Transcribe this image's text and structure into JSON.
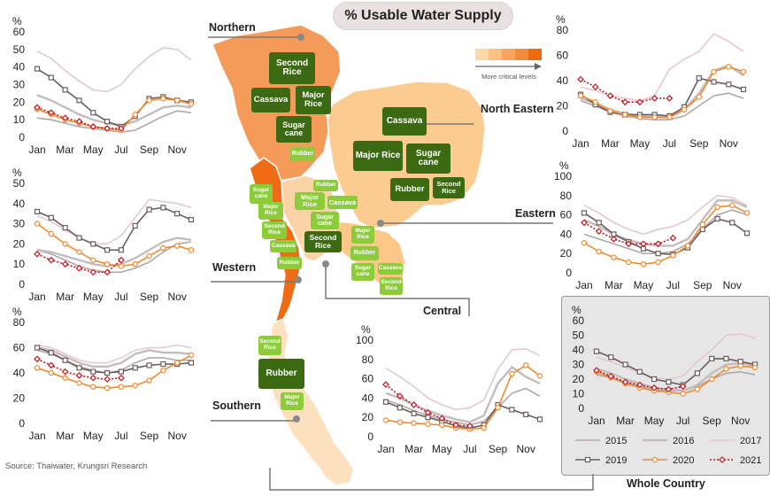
{
  "title": "% Usable Water Supply",
  "source": "Source: Thaiwater, Krungsri Research",
  "map_legend": {
    "label": "More critical levels",
    "colors": [
      "#fcd9a8",
      "#fbc183",
      "#f9a55e",
      "#f58a3a",
      "#f06a0f"
    ]
  },
  "regions": {
    "northern": "Northern",
    "north_eastern": "North Eastern",
    "eastern": "Eastern",
    "western": "Western",
    "central": "Central",
    "southern": "Southern",
    "whole": "Whole Country"
  },
  "colors": {
    "map_north": "#f49b5a",
    "map_northeast": "#fccb90",
    "map_west": "#f06c14",
    "map_central": "#fbd3a6",
    "map_east": "#fcc787",
    "map_south": "#fde0bd",
    "crop_dark": "#3c6a12",
    "crop_light": "#8ccc3a",
    "y2015": "#b3a6a6",
    "y2016": "#c4bcbc",
    "y2017": "#e4c8cc",
    "y2019": "#6b5d5d",
    "y2020": "#f08a2e",
    "y2021": "#c4171e"
  },
  "crops": {
    "north_second_rice": "Second Rice",
    "north_cassava": "Cassava",
    "north_major_rice": "Major Rice",
    "north_sugar_cane": "Sugar cane",
    "north_rubber": "Rubber",
    "ne_cassava": "Cassava",
    "ne_major_rice": "Major Rice",
    "ne_sugar_cane": "Sugar cane",
    "ne_rubber": "Rubber",
    "ne_second_rice": "Second Rice",
    "w_sugar_cane": "Sugar cane",
    "w_major_rice": "Major Rice",
    "w_second_rice": "Second Rice",
    "w_cassava": "Cassava",
    "w_rubber": "Rubber",
    "c_rubber": "Rubber",
    "c_major_rice": "Major Rice",
    "c_cassava": "Cassava",
    "c_sugar_cane": "Sugar cane",
    "c_second_rice": "Second Rice",
    "e_major_rice": "Major Rice",
    "e_rubber": "Rubber",
    "e_sugar_cane": "Sugar cane",
    "e_cassava": "Cassava",
    "e_second_rice": "Second Rice",
    "s_second_rice": "Second Rice",
    "s_rubber": "Rubber",
    "s_major_rice": "Major Rice"
  },
  "legend": [
    "2015",
    "2016",
    "2017",
    "2019",
    "2020",
    "2021"
  ],
  "chart_data": [
    {
      "id": "northern",
      "type": "line",
      "unit": "%",
      "ylim": [
        0,
        60
      ],
      "yticks": [
        0,
        10,
        20,
        30,
        40,
        50,
        60
      ],
      "x_ticks": [
        "Jan",
        "Mar",
        "May",
        "Jul",
        "Sep",
        "Nov"
      ],
      "series": [
        {
          "name": "2015",
          "values": [
            11,
            10,
            8,
            6,
            5,
            4,
            3,
            4,
            8,
            12,
            15,
            14
          ]
        },
        {
          "name": "2016",
          "values": [
            24,
            21,
            17,
            13,
            10,
            8,
            7,
            9,
            13,
            17,
            18,
            17
          ]
        },
        {
          "name": "2017",
          "values": [
            49,
            45,
            38,
            32,
            27,
            26,
            30,
            39,
            46,
            51,
            50,
            44
          ]
        },
        {
          "name": "2019",
          "values": [
            39,
            34,
            27,
            21,
            14,
            9,
            6,
            12,
            22,
            23,
            21,
            20
          ]
        },
        {
          "name": "2020",
          "values": [
            16,
            13,
            10,
            8,
            6,
            5,
            4,
            13,
            21,
            22,
            21,
            19
          ]
        },
        {
          "name": "2021",
          "values": [
            17,
            14,
            11,
            9,
            6,
            5,
            5
          ]
        }
      ]
    },
    {
      "id": "north_eastern",
      "type": "line",
      "unit": "%",
      "ylim": [
        0,
        80
      ],
      "yticks": [
        0,
        20,
        40,
        60,
        80
      ],
      "x_ticks": [
        "Jan",
        "Mar",
        "May",
        "Jul",
        "Sep",
        "Nov"
      ],
      "series": [
        {
          "name": "2015",
          "values": [
            24,
            20,
            15,
            12,
            10,
            9,
            9,
            12,
            20,
            28,
            30,
            26
          ]
        },
        {
          "name": "2016",
          "values": [
            26,
            22,
            17,
            14,
            12,
            11,
            11,
            17,
            30,
            48,
            52,
            44
          ]
        },
        {
          "name": "2017",
          "values": [
            35,
            32,
            28,
            26,
            24,
            28,
            49,
            57,
            63,
            77,
            71,
            63
          ]
        },
        {
          "name": "2019",
          "values": [
            29,
            21,
            15,
            13,
            13,
            13,
            12,
            19,
            42,
            39,
            37,
            33
          ]
        },
        {
          "name": "2020",
          "values": [
            28,
            23,
            16,
            13,
            11,
            11,
            11,
            17,
            27,
            47,
            51,
            47
          ]
        },
        {
          "name": "2021",
          "values": [
            41,
            35,
            28,
            23,
            23,
            26,
            26
          ]
        }
      ]
    },
    {
      "id": "western",
      "type": "line",
      "unit": "%",
      "ylim": [
        0,
        50
      ],
      "yticks": [
        0,
        10,
        20,
        30,
        40,
        50
      ],
      "x_ticks": [
        "Jan",
        "Mar",
        "May",
        "Jul",
        "Sep",
        "Nov"
      ],
      "series": [
        {
          "name": "2015",
          "values": [
            17,
            15,
            12,
            9,
            7,
            6,
            6,
            8,
            11,
            16,
            20,
            21
          ]
        },
        {
          "name": "2016",
          "values": [
            17,
            16,
            14,
            12,
            10,
            9,
            10,
            13,
            17,
            21,
            23,
            22
          ]
        },
        {
          "name": "2017",
          "values": [
            34,
            31,
            27,
            23,
            20,
            20,
            24,
            33,
            42,
            41,
            40,
            38
          ]
        },
        {
          "name": "2019",
          "values": [
            36,
            33,
            28,
            23,
            20,
            17,
            17,
            29,
            37,
            38,
            35,
            32
          ]
        },
        {
          "name": "2020",
          "values": [
            30,
            25,
            20,
            16,
            12,
            10,
            9,
            10,
            14,
            18,
            19,
            17
          ]
        },
        {
          "name": "2021",
          "values": [
            15,
            12,
            10,
            8,
            6,
            6,
            12
          ]
        }
      ]
    },
    {
      "id": "eastern",
      "type": "line",
      "unit": "%",
      "ylim": [
        0,
        100
      ],
      "yticks": [
        0,
        20,
        40,
        60,
        80,
        100
      ],
      "x_ticks": [
        "Jan",
        "Mar",
        "May",
        "Jul",
        "Sep",
        "Nov"
      ],
      "series": [
        {
          "name": "2015",
          "values": [
            40,
            35,
            30,
            25,
            20,
            20,
            22,
            30,
            45,
            60,
            65,
            60
          ]
        },
        {
          "name": "2016",
          "values": [
            55,
            48,
            40,
            34,
            30,
            28,
            28,
            35,
            55,
            75,
            75,
            68
          ]
        },
        {
          "name": "2017",
          "values": [
            70,
            62,
            52,
            45,
            40,
            45,
            48,
            55,
            68,
            80,
            78,
            70
          ]
        },
        {
          "name": "2019",
          "values": [
            62,
            52,
            40,
            32,
            25,
            20,
            19,
            26,
            45,
            56,
            52,
            41
          ]
        },
        {
          "name": "2020",
          "values": [
            31,
            22,
            16,
            11,
            9,
            11,
            18,
            28,
            50,
            68,
            70,
            62
          ]
        },
        {
          "name": "2021",
          "values": [
            52,
            43,
            35,
            30,
            30,
            30,
            36
          ]
        }
      ]
    },
    {
      "id": "southern",
      "type": "line",
      "unit": "%",
      "ylim": [
        0,
        80
      ],
      "yticks": [
        0,
        20,
        40,
        60,
        80
      ],
      "x_ticks": [
        "Jan",
        "Mar",
        "May",
        "Jul",
        "Sep",
        "Nov"
      ],
      "series": [
        {
          "name": "2015",
          "values": [
            58,
            55,
            50,
            45,
            42,
            40,
            42,
            48,
            52,
            52,
            50,
            50
          ]
        },
        {
          "name": "2016",
          "values": [
            60,
            58,
            53,
            48,
            45,
            45,
            48,
            55,
            58,
            56,
            56,
            55
          ]
        },
        {
          "name": "2017",
          "values": [
            62,
            60,
            55,
            50,
            48,
            48,
            52,
            58,
            60,
            60,
            62,
            60
          ]
        },
        {
          "name": "2019",
          "values": [
            60,
            56,
            50,
            44,
            41,
            40,
            41,
            44,
            46,
            47,
            47,
            48
          ]
        },
        {
          "name": "2020",
          "values": [
            44,
            40,
            36,
            32,
            29,
            28,
            29,
            30,
            34,
            42,
            48,
            54
          ]
        },
        {
          "name": "2021",
          "values": [
            51,
            46,
            41,
            38,
            36,
            35,
            36
          ]
        }
      ]
    },
    {
      "id": "central",
      "type": "line",
      "unit": "%",
      "ylim": [
        0,
        100
      ],
      "yticks": [
        0,
        20,
        40,
        60,
        80,
        100
      ],
      "x_ticks": [
        "Jan",
        "Mar",
        "May",
        "Jul",
        "Sep",
        "Nov"
      ],
      "series": [
        {
          "name": "2015",
          "values": [
            38,
            33,
            27,
            22,
            18,
            15,
            12,
            16,
            30,
            45,
            50,
            42
          ]
        },
        {
          "name": "2016",
          "values": [
            45,
            40,
            33,
            27,
            22,
            18,
            15,
            22,
            55,
            72,
            62,
            55
          ]
        },
        {
          "name": "2017",
          "values": [
            71,
            62,
            52,
            40,
            33,
            28,
            30,
            38,
            70,
            90,
            91,
            84
          ]
        },
        {
          "name": "2019",
          "values": [
            36,
            30,
            24,
            20,
            16,
            11,
            9,
            12,
            33,
            28,
            23,
            18
          ]
        },
        {
          "name": "2020",
          "values": [
            17,
            15,
            14,
            13,
            12,
            9,
            8,
            9,
            30,
            65,
            74,
            63
          ]
        },
        {
          "name": "2021",
          "values": [
            54,
            42,
            33,
            25,
            19,
            12,
            11
          ]
        }
      ]
    },
    {
      "id": "whole",
      "type": "line",
      "unit": "%",
      "ylim": [
        0,
        60
      ],
      "yticks": [
        0,
        10,
        20,
        30,
        40,
        50,
        60
      ],
      "x_ticks": [
        "Jan",
        "Mar",
        "May",
        "Jul",
        "Sep",
        "Nov"
      ],
      "series": [
        {
          "name": "2015",
          "values": [
            23,
            21,
            18,
            15,
            13,
            12,
            12,
            15,
            20,
            24,
            25,
            23
          ]
        },
        {
          "name": "2016",
          "values": [
            27,
            24,
            20,
            17,
            14,
            13,
            12,
            16,
            24,
            30,
            31,
            29
          ]
        },
        {
          "name": "2017",
          "values": [
            35,
            32,
            28,
            24,
            21,
            20,
            22,
            32,
            40,
            50,
            51,
            48
          ]
        },
        {
          "name": "2019",
          "values": [
            39,
            35,
            30,
            25,
            20,
            18,
            16,
            24,
            34,
            34,
            32,
            30
          ]
        },
        {
          "name": "2020",
          "values": [
            25,
            21,
            17,
            14,
            12,
            11,
            10,
            13,
            20,
            27,
            29,
            28
          ]
        },
        {
          "name": "2021",
          "values": [
            26,
            22,
            18,
            16,
            14,
            13,
            15
          ]
        }
      ]
    }
  ]
}
